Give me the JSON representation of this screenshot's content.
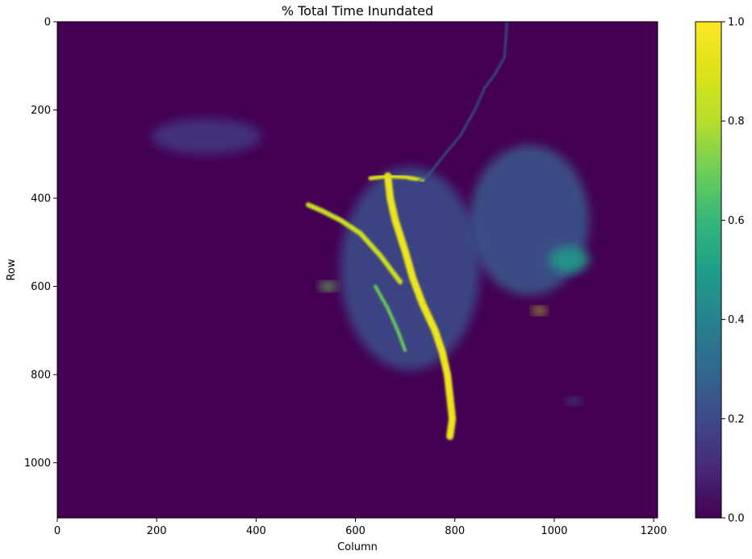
{
  "chart_data": {
    "type": "heatmap",
    "title": "% Total Time Inundated",
    "xlabel": "Column",
    "ylabel": "Row",
    "xlim": [
      0,
      1208
    ],
    "ylim": [
      1125,
      0
    ],
    "x_ticks": [
      0,
      200,
      400,
      600,
      800,
      1000,
      1200
    ],
    "y_ticks": [
      0,
      200,
      400,
      600,
      800,
      1000
    ],
    "colormap": "viridis",
    "colorbar": {
      "min": 0.0,
      "max": 1.0,
      "ticks": [
        "0.0",
        "0.2",
        "0.4",
        "0.6",
        "0.8",
        "1.0"
      ]
    },
    "background_value": 0.0,
    "features": [
      {
        "name": "main-channel",
        "value": 0.95,
        "width": 9,
        "path": [
          [
            665,
            350
          ],
          [
            670,
            400
          ],
          [
            680,
            450
          ],
          [
            700,
            520
          ],
          [
            715,
            580
          ],
          [
            735,
            640
          ],
          [
            760,
            700
          ],
          [
            775,
            750
          ],
          [
            785,
            800
          ],
          [
            790,
            850
          ],
          [
            795,
            900
          ],
          [
            790,
            940
          ]
        ]
      },
      {
        "name": "main-channel-upper",
        "value": 0.9,
        "width": 5,
        "path": [
          [
            630,
            355
          ],
          [
            665,
            350
          ],
          [
            700,
            352
          ],
          [
            735,
            360
          ]
        ]
      },
      {
        "name": "west-lobe",
        "value": 0.85,
        "width": 6,
        "path": [
          [
            505,
            415
          ],
          [
            535,
            430
          ],
          [
            570,
            450
          ],
          [
            610,
            480
          ],
          [
            650,
            530
          ],
          [
            690,
            590
          ]
        ]
      },
      {
        "name": "north-river",
        "value": 0.3,
        "width": 2,
        "path": [
          [
            905,
            0
          ],
          [
            900,
            80
          ],
          [
            880,
            120
          ],
          [
            860,
            150
          ],
          [
            840,
            200
          ],
          [
            810,
            260
          ],
          [
            780,
            300
          ],
          [
            745,
            350
          ],
          [
            720,
            365
          ]
        ]
      },
      {
        "name": "southwest-tongue",
        "value": 0.7,
        "width": 4,
        "path": [
          [
            640,
            600
          ],
          [
            665,
            650
          ],
          [
            685,
            700
          ],
          [
            700,
            745
          ]
        ]
      }
    ],
    "patches": [
      {
        "name": "central-wetland",
        "value": 0.22,
        "center": [
          710,
          560
        ],
        "radius": [
          140,
          230
        ]
      },
      {
        "name": "east-wetland",
        "value": 0.25,
        "center": [
          950,
          450
        ],
        "radius": [
          120,
          170
        ]
      },
      {
        "name": "east-edge",
        "value": 0.5,
        "center": [
          1030,
          540
        ],
        "radius": [
          40,
          30
        ]
      },
      {
        "name": "east-spot",
        "value": 0.85,
        "center": [
          970,
          655
        ],
        "radius": [
          14,
          9
        ]
      },
      {
        "name": "west-spot",
        "value": 0.7,
        "center": [
          545,
          600
        ],
        "radius": [
          18,
          10
        ]
      },
      {
        "name": "northwest-fringe",
        "value": 0.15,
        "center": [
          300,
          260
        ],
        "radius": [
          110,
          40
        ]
      },
      {
        "name": "southeast-spot",
        "value": 0.25,
        "center": [
          1040,
          860
        ],
        "radius": [
          15,
          8
        ]
      }
    ]
  }
}
